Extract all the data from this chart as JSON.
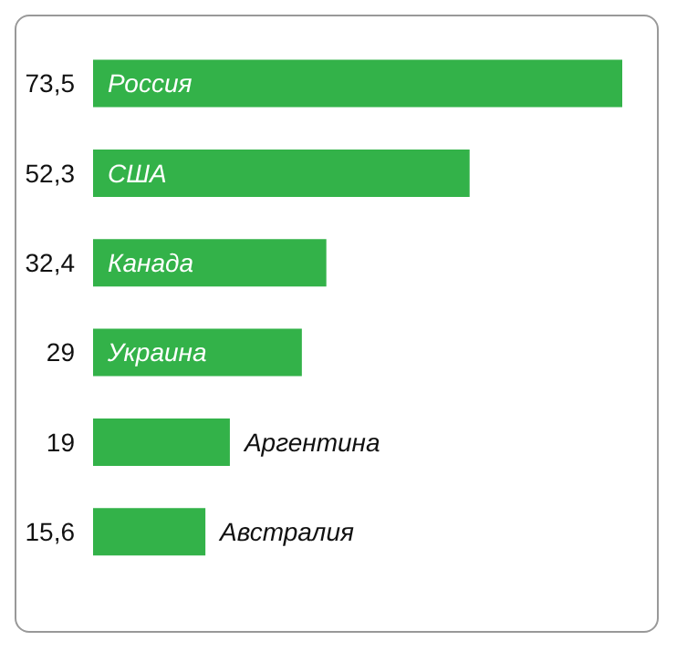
{
  "chart_data": {
    "type": "bar",
    "orientation": "horizontal",
    "categories": [
      "Россия",
      "США",
      "Канада",
      "Украина",
      "Аргентина",
      "Австралия"
    ],
    "values": [
      73.5,
      52.3,
      32.4,
      29,
      19,
      15.6
    ],
    "value_labels": [
      "73,5",
      "52,3",
      "32,4",
      "29",
      "19",
      "15,6"
    ],
    "color": "#33b249",
    "grid": false,
    "legend": false
  }
}
